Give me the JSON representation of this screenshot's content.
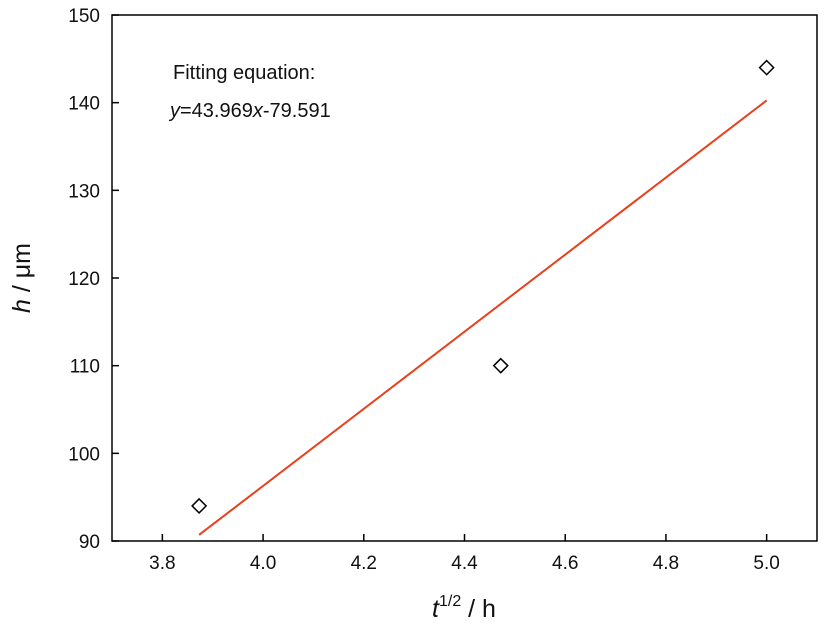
{
  "chart_data": {
    "type": "scatter",
    "xlabel": {
      "base": "t",
      "sup": "1/2",
      "suffix": " / h"
    },
    "ylabel": {
      "base": "h",
      "suffix": " / μm"
    },
    "xlim": [
      3.7,
      5.1
    ],
    "ylim": [
      90,
      150
    ],
    "xticks": [
      "3.8",
      "4.0",
      "4.2",
      "4.4",
      "4.6",
      "4.8",
      "5.0"
    ],
    "yticks": [
      "90",
      "100",
      "110",
      "120",
      "130",
      "140",
      "150"
    ],
    "grid": false,
    "points": [
      {
        "x": 3.873,
        "y": 94.0
      },
      {
        "x": 4.472,
        "y": 110.0
      },
      {
        "x": 5.0,
        "y": 144.0
      }
    ],
    "fit": {
      "slope": 43.969,
      "intercept": -79.591,
      "x_range": [
        3.873,
        5.0
      ],
      "color": "#e8401c"
    },
    "marker_color": "#000000",
    "annotation": {
      "line1": "Fitting equation:",
      "y_var": "y",
      "eq_mid": "=43.969",
      "x_var": "x",
      "eq_end": "-79.591"
    }
  }
}
